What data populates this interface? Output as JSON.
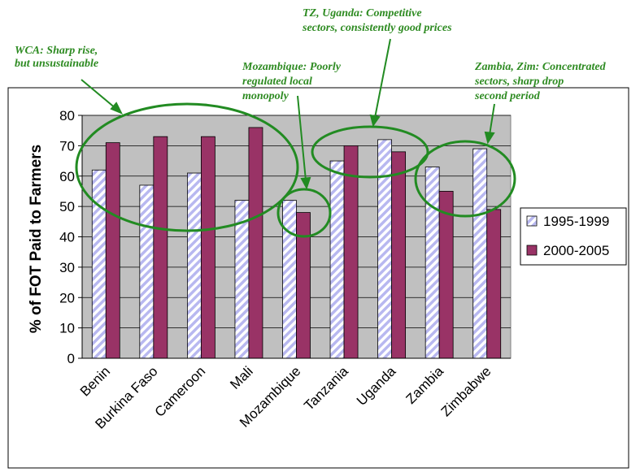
{
  "chart_data": {
    "type": "bar",
    "ylabel": "% of FOT Paid to Farmers",
    "ylim": [
      0,
      80
    ],
    "yticks": [
      0,
      10,
      20,
      30,
      40,
      50,
      60,
      70,
      80
    ],
    "categories": [
      "Benin",
      "Burkina Faso",
      "Cameroon",
      "Mali",
      "Mozambique",
      "Tanzania",
      "Uganda",
      "Zambia",
      "Zimbabwe"
    ],
    "series": [
      {
        "name": "1995-1999",
        "values": [
          62,
          57,
          61,
          52,
          52,
          65,
          72,
          63,
          69
        ],
        "color": "#b8b8f0",
        "pattern": "diagonal-stripes"
      },
      {
        "name": "2000-2005",
        "values": [
          71,
          73,
          73,
          76,
          48,
          70,
          68,
          55,
          49
        ],
        "color": "#993366"
      }
    ],
    "legend_position": "right",
    "plot_background": "#c0c0c0",
    "grid": true,
    "annotation_color": "#2e8b22",
    "annotations": [
      {
        "id": "wca",
        "lines": [
          "WCA: Sharp rise,",
          "but unsustainable"
        ]
      },
      {
        "id": "mozambique",
        "lines": [
          "Mozambique:  Poorly",
          "regulated local",
          "monopoly"
        ]
      },
      {
        "id": "tz-uganda",
        "lines": [
          "TZ, Uganda: Competitive",
          "sectors, consistently good prices"
        ]
      },
      {
        "id": "zambia-zim",
        "lines": [
          "Zambia, Zim: Concentrated",
          "sectors, sharp drop",
          "second period"
        ]
      }
    ]
  }
}
